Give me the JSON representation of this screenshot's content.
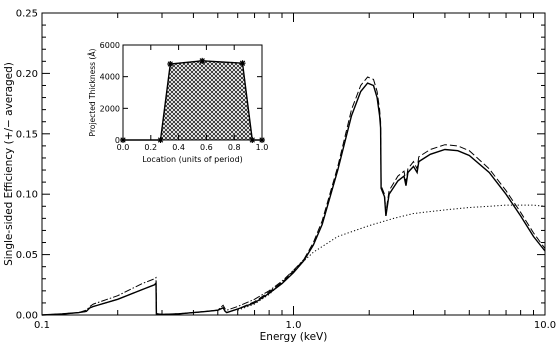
{
  "chart_data": [
    {
      "type": "line",
      "xlabel": "Energy (keV)",
      "ylabel": "Single-sided Efficiency (+/− averaged)",
      "x_scale": "log",
      "xlim": [
        0.1,
        10.0
      ],
      "ylim": [
        0.0,
        0.25
      ],
      "x_ticks": [
        "0.1",
        "1.0",
        "10.0"
      ],
      "y_ticks": [
        "0.00",
        "0.05",
        "0.10",
        "0.15",
        "0.20",
        "0.25"
      ],
      "grid": false,
      "series": [
        {
          "style": "solid",
          "points": [
            [
              0.1,
              0.0
            ],
            [
              0.12,
              0.0008
            ],
            [
              0.14,
              0.002
            ],
            [
              0.15,
              0.003
            ],
            [
              0.155,
              0.006
            ],
            [
              0.16,
              0.007
            ],
            [
              0.2,
              0.013
            ],
            [
              0.25,
              0.021
            ],
            [
              0.28,
              0.025
            ],
            [
              0.284,
              0.0265
            ],
            [
              0.285,
              0.001
            ],
            [
              0.3,
              0.0005
            ],
            [
              0.35,
              0.001
            ],
            [
              0.4,
              0.002
            ],
            [
              0.45,
              0.003
            ],
            [
              0.5,
              0.004
            ],
            [
              0.525,
              0.006
            ],
            [
              0.535,
              0.003
            ],
            [
              0.543,
              0.002
            ],
            [
              0.6,
              0.005
            ],
            [
              0.7,
              0.01
            ],
            [
              0.8,
              0.018
            ],
            [
              0.9,
              0.026
            ],
            [
              1.0,
              0.035
            ],
            [
              1.1,
              0.045
            ],
            [
              1.2,
              0.058
            ],
            [
              1.3,
              0.075
            ],
            [
              1.5,
              0.12
            ],
            [
              1.7,
              0.165
            ],
            [
              1.85,
              0.185
            ],
            [
              1.97,
              0.192
            ],
            [
              2.08,
              0.19
            ],
            [
              2.15,
              0.18
            ],
            [
              2.2,
              0.165
            ],
            [
              2.22,
              0.155
            ],
            [
              2.23,
              0.105
            ],
            [
              2.3,
              0.098
            ],
            [
              2.33,
              0.082
            ],
            [
              2.4,
              0.1
            ],
            [
              2.6,
              0.111
            ],
            [
              2.75,
              0.115
            ],
            [
              2.8,
              0.107
            ],
            [
              2.85,
              0.118
            ],
            [
              3.0,
              0.123
            ],
            [
              3.1,
              0.118
            ],
            [
              3.15,
              0.127
            ],
            [
              3.5,
              0.133
            ],
            [
              4.0,
              0.137
            ],
            [
              4.5,
              0.136
            ],
            [
              5.0,
              0.132
            ],
            [
              6.0,
              0.118
            ],
            [
              7.0,
              0.1
            ],
            [
              8.0,
              0.082
            ],
            [
              9.0,
              0.065
            ],
            [
              10.0,
              0.053
            ]
          ]
        },
        {
          "style": "dashed",
          "points": [
            [
              0.1,
              0.0
            ],
            [
              0.12,
              0.0008
            ],
            [
              0.14,
              0.002
            ],
            [
              0.15,
              0.003
            ],
            [
              0.155,
              0.006
            ],
            [
              0.16,
              0.007
            ],
            [
              0.2,
              0.013
            ],
            [
              0.25,
              0.021
            ],
            [
              0.28,
              0.025
            ],
            [
              0.284,
              0.0265
            ],
            [
              0.285,
              0.001
            ],
            [
              0.3,
              0.0005
            ],
            [
              0.35,
              0.001
            ],
            [
              0.4,
              0.002
            ],
            [
              0.45,
              0.003
            ],
            [
              0.5,
              0.004
            ],
            [
              0.525,
              0.006
            ],
            [
              0.535,
              0.003
            ],
            [
              0.543,
              0.002
            ],
            [
              0.6,
              0.005
            ],
            [
              0.7,
              0.011
            ],
            [
              0.8,
              0.019
            ],
            [
              0.9,
              0.027
            ],
            [
              1.0,
              0.036
            ],
            [
              1.1,
              0.046
            ],
            [
              1.2,
              0.06
            ],
            [
              1.3,
              0.078
            ],
            [
              1.5,
              0.123
            ],
            [
              1.7,
              0.17
            ],
            [
              1.85,
              0.19
            ],
            [
              1.97,
              0.197
            ],
            [
              2.08,
              0.195
            ],
            [
              2.15,
              0.185
            ],
            [
              2.2,
              0.17
            ],
            [
              2.22,
              0.16
            ],
            [
              2.23,
              0.107
            ],
            [
              2.3,
              0.1
            ],
            [
              2.33,
              0.085
            ],
            [
              2.4,
              0.103
            ],
            [
              2.6,
              0.115
            ],
            [
              2.75,
              0.119
            ],
            [
              2.8,
              0.11
            ],
            [
              2.85,
              0.121
            ],
            [
              3.0,
              0.127
            ],
            [
              3.1,
              0.121
            ],
            [
              3.15,
              0.131
            ],
            [
              3.5,
              0.137
            ],
            [
              4.0,
              0.141
            ],
            [
              4.5,
              0.14
            ],
            [
              5.0,
              0.136
            ],
            [
              6.0,
              0.121
            ],
            [
              7.0,
              0.103
            ],
            [
              8.0,
              0.085
            ],
            [
              9.0,
              0.068
            ],
            [
              10.0,
              0.055
            ]
          ]
        },
        {
          "style": "dash-dot",
          "points": [
            [
              0.1,
              0.0
            ],
            [
              0.12,
              0.001
            ],
            [
              0.14,
              0.002
            ],
            [
              0.15,
              0.004
            ],
            [
              0.155,
              0.007
            ],
            [
              0.16,
              0.009
            ],
            [
              0.2,
              0.016
            ],
            [
              0.25,
              0.026
            ],
            [
              0.28,
              0.03
            ],
            [
              0.284,
              0.031
            ],
            [
              0.285,
              0.001
            ],
            [
              0.3,
              0.0005
            ],
            [
              0.35,
              0.001
            ],
            [
              0.4,
              0.002
            ],
            [
              0.45,
              0.003
            ],
            [
              0.5,
              0.004
            ],
            [
              0.525,
              0.008
            ],
            [
              0.535,
              0.005
            ],
            [
              0.543,
              0.004
            ],
            [
              0.6,
              0.007
            ],
            [
              0.7,
              0.013
            ],
            [
              0.8,
              0.02
            ],
            [
              0.9,
              0.028
            ],
            [
              1.0,
              0.037
            ],
            [
              1.1,
              0.046
            ]
          ]
        },
        {
          "style": "dotted",
          "points": [
            [
              0.6,
              0.004
            ],
            [
              0.7,
              0.009
            ],
            [
              0.8,
              0.017
            ],
            [
              0.9,
              0.027
            ],
            [
              1.0,
              0.037
            ],
            [
              1.2,
              0.052
            ],
            [
              1.5,
              0.065
            ],
            [
              2.0,
              0.074
            ],
            [
              2.5,
              0.08
            ],
            [
              3.0,
              0.084
            ],
            [
              4.0,
              0.087
            ],
            [
              5.0,
              0.089
            ],
            [
              6.0,
              0.09
            ],
            [
              7.0,
              0.091
            ],
            [
              8.0,
              0.091
            ],
            [
              9.0,
              0.091
            ],
            [
              10.0,
              0.09
            ]
          ]
        }
      ]
    },
    {
      "type": "area",
      "xlabel": "Location (units of period)",
      "ylabel": "Projected Thickness (Å)",
      "xlim": [
        0.0,
        1.0
      ],
      "ylim": [
        0,
        6000
      ],
      "x_ticks": [
        "0.0",
        "0.2",
        "0.4",
        "0.6",
        "0.8",
        "1.0"
      ],
      "y_ticks": [
        "0",
        "2000",
        "4000",
        "6000"
      ],
      "fill": "cross-hatch",
      "points": [
        [
          0.0,
          0
        ],
        [
          0.27,
          0
        ],
        [
          0.34,
          4800
        ],
        [
          0.57,
          5000
        ],
        [
          0.86,
          4850
        ],
        [
          0.93,
          0
        ],
        [
          1.0,
          0
        ]
      ],
      "markers": [
        [
          0.0,
          0
        ],
        [
          0.27,
          0
        ],
        [
          0.34,
          4800
        ],
        [
          0.57,
          5000
        ],
        [
          0.86,
          4850
        ],
        [
          0.93,
          0
        ],
        [
          1.0,
          0
        ]
      ]
    }
  ]
}
